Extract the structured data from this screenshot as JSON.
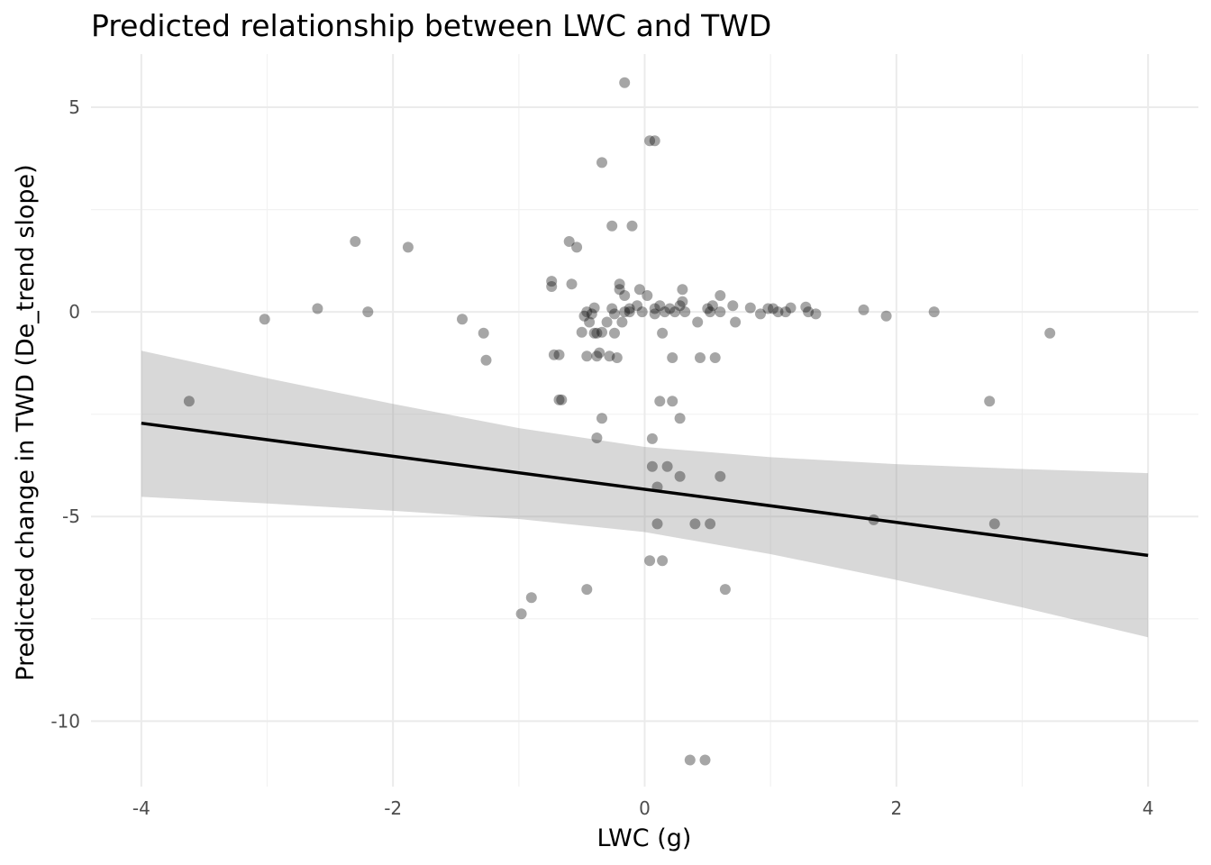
{
  "chart_data": {
    "type": "scatter",
    "title": "Predicted relationship between LWC and TWD",
    "xlabel": "LWC (g)",
    "ylabel": "Predicted change in TWD (De_trend slope)",
    "xlim": [
      -4.4,
      4.4
    ],
    "ylim": [
      -11.6,
      6.3
    ],
    "x_ticks": [
      -4,
      -2,
      0,
      2,
      4
    ],
    "x_tick_labels": [
      "-4",
      "-2",
      "0",
      "2",
      "4"
    ],
    "y_ticks": [
      -10,
      -5,
      0,
      5
    ],
    "y_tick_labels": [
      "-10",
      "-5",
      "0",
      "5"
    ],
    "grid": true,
    "legend": "none",
    "colors": {
      "points": "#000000",
      "line": "#000000",
      "band": "#999999",
      "grid": "#ebebeb"
    },
    "points": [
      {
        "x": -3.62,
        "y": -2.18
      },
      {
        "x": -3.02,
        "y": -0.18
      },
      {
        "x": -2.6,
        "y": 0.08
      },
      {
        "x": -2.3,
        "y": 1.72
      },
      {
        "x": -2.2,
        "y": 0.0
      },
      {
        "x": -1.88,
        "y": 1.58
      },
      {
        "x": -1.45,
        "y": -0.18
      },
      {
        "x": -1.28,
        "y": -0.52
      },
      {
        "x": -1.26,
        "y": -1.18
      },
      {
        "x": -0.98,
        "y": -7.38
      },
      {
        "x": -0.9,
        "y": -6.98
      },
      {
        "x": -0.74,
        "y": 0.75
      },
      {
        "x": -0.74,
        "y": 0.62
      },
      {
        "x": -0.72,
        "y": -1.05
      },
      {
        "x": -0.68,
        "y": -1.05
      },
      {
        "x": -0.68,
        "y": -2.15
      },
      {
        "x": -0.66,
        "y": -2.15
      },
      {
        "x": -0.6,
        "y": 1.72
      },
      {
        "x": -0.58,
        "y": 0.68
      },
      {
        "x": -0.54,
        "y": 1.58
      },
      {
        "x": -0.5,
        "y": -0.5
      },
      {
        "x": -0.48,
        "y": -0.1
      },
      {
        "x": -0.46,
        "y": 0.0
      },
      {
        "x": -0.46,
        "y": -6.78
      },
      {
        "x": -0.46,
        "y": -1.08
      },
      {
        "x": -0.44,
        "y": -0.25
      },
      {
        "x": -0.42,
        "y": -0.05
      },
      {
        "x": -0.4,
        "y": 0.1
      },
      {
        "x": -0.4,
        "y": -0.52
      },
      {
        "x": -0.38,
        "y": -0.52
      },
      {
        "x": -0.38,
        "y": -1.08
      },
      {
        "x": -0.38,
        "y": -3.08
      },
      {
        "x": -0.36,
        "y": -1.0
      },
      {
        "x": -0.34,
        "y": -0.5
      },
      {
        "x": -0.34,
        "y": -2.6
      },
      {
        "x": -0.34,
        "y": 3.65
      },
      {
        "x": -0.3,
        "y": -0.25
      },
      {
        "x": -0.28,
        "y": -1.08
      },
      {
        "x": -0.26,
        "y": 2.1
      },
      {
        "x": -0.26,
        "y": 0.08
      },
      {
        "x": -0.24,
        "y": -0.05
      },
      {
        "x": -0.24,
        "y": -0.52
      },
      {
        "x": -0.22,
        "y": -1.12
      },
      {
        "x": -0.2,
        "y": 0.68
      },
      {
        "x": -0.2,
        "y": 0.55
      },
      {
        "x": -0.18,
        "y": -0.25
      },
      {
        "x": -0.16,
        "y": 0.4
      },
      {
        "x": -0.16,
        "y": 0.0
      },
      {
        "x": -0.16,
        "y": 5.6
      },
      {
        "x": -0.12,
        "y": 0.08
      },
      {
        "x": -0.12,
        "y": 0.0
      },
      {
        "x": -0.1,
        "y": 2.1
      },
      {
        "x": -0.06,
        "y": 0.15
      },
      {
        "x": -0.04,
        "y": 0.55
      },
      {
        "x": -0.02,
        "y": 0.0
      },
      {
        "x": 0.02,
        "y": 0.4
      },
      {
        "x": 0.04,
        "y": 4.18
      },
      {
        "x": 0.04,
        "y": -6.08
      },
      {
        "x": 0.06,
        "y": -3.1
      },
      {
        "x": 0.06,
        "y": -3.78
      },
      {
        "x": 0.08,
        "y": 4.18
      },
      {
        "x": 0.08,
        "y": 0.08
      },
      {
        "x": 0.08,
        "y": -0.05
      },
      {
        "x": 0.1,
        "y": -4.28
      },
      {
        "x": 0.1,
        "y": -5.18
      },
      {
        "x": 0.12,
        "y": -2.18
      },
      {
        "x": 0.12,
        "y": 0.15
      },
      {
        "x": 0.14,
        "y": -0.52
      },
      {
        "x": 0.14,
        "y": -6.08
      },
      {
        "x": 0.16,
        "y": 0.0
      },
      {
        "x": 0.18,
        "y": -3.78
      },
      {
        "x": 0.2,
        "y": 0.08
      },
      {
        "x": 0.22,
        "y": -2.18
      },
      {
        "x": 0.22,
        "y": -1.12
      },
      {
        "x": 0.24,
        "y": 0.0
      },
      {
        "x": 0.28,
        "y": 0.15
      },
      {
        "x": 0.28,
        "y": -2.6
      },
      {
        "x": 0.28,
        "y": -4.02
      },
      {
        "x": 0.3,
        "y": 0.55
      },
      {
        "x": 0.3,
        "y": 0.25
      },
      {
        "x": 0.32,
        "y": 0.0
      },
      {
        "x": 0.36,
        "y": -10.95
      },
      {
        "x": 0.4,
        "y": -5.18
      },
      {
        "x": 0.42,
        "y": -0.25
      },
      {
        "x": 0.44,
        "y": -1.12
      },
      {
        "x": 0.48,
        "y": -10.95
      },
      {
        "x": 0.5,
        "y": 0.08
      },
      {
        "x": 0.52,
        "y": -5.18
      },
      {
        "x": 0.52,
        "y": 0.0
      },
      {
        "x": 0.54,
        "y": 0.15
      },
      {
        "x": 0.56,
        "y": -1.12
      },
      {
        "x": 0.6,
        "y": -4.02
      },
      {
        "x": 0.6,
        "y": 0.4
      },
      {
        "x": 0.6,
        "y": 0.0
      },
      {
        "x": 0.64,
        "y": -6.78
      },
      {
        "x": 0.7,
        "y": 0.15
      },
      {
        "x": 0.72,
        "y": -0.25
      },
      {
        "x": 0.84,
        "y": 0.1
      },
      {
        "x": 0.92,
        "y": -0.05
      },
      {
        "x": 0.98,
        "y": 0.08
      },
      {
        "x": 1.02,
        "y": 0.08
      },
      {
        "x": 1.06,
        "y": 0.0
      },
      {
        "x": 1.12,
        "y": 0.0
      },
      {
        "x": 1.16,
        "y": 0.1
      },
      {
        "x": 1.28,
        "y": 0.12
      },
      {
        "x": 1.3,
        "y": 0.0
      },
      {
        "x": 1.36,
        "y": -0.05
      },
      {
        "x": 1.74,
        "y": 0.05
      },
      {
        "x": 1.82,
        "y": -5.08
      },
      {
        "x": 1.92,
        "y": -0.1
      },
      {
        "x": 2.3,
        "y": 0.0
      },
      {
        "x": 2.74,
        "y": -2.18
      },
      {
        "x": 2.78,
        "y": -5.18
      },
      {
        "x": 3.22,
        "y": -0.52
      }
    ],
    "fit_line": [
      {
        "x": -4,
        "y": -2.72
      },
      {
        "x": 4,
        "y": -5.95
      }
    ],
    "ci_band": [
      {
        "x": -4,
        "lower": -4.52,
        "upper": -0.95
      },
      {
        "x": -3,
        "lower": -4.68,
        "upper": -1.62
      },
      {
        "x": -2,
        "lower": -4.86,
        "upper": -2.25
      },
      {
        "x": -1,
        "lower": -5.06,
        "upper": -2.84
      },
      {
        "x": 0,
        "lower": -5.38,
        "upper": -3.3
      },
      {
        "x": 1,
        "lower": -5.92,
        "upper": -3.55
      },
      {
        "x": 2,
        "lower": -6.55,
        "upper": -3.72
      },
      {
        "x": 3,
        "lower": -7.22,
        "upper": -3.84
      },
      {
        "x": 4,
        "lower": -7.95,
        "upper": -3.94
      }
    ]
  }
}
